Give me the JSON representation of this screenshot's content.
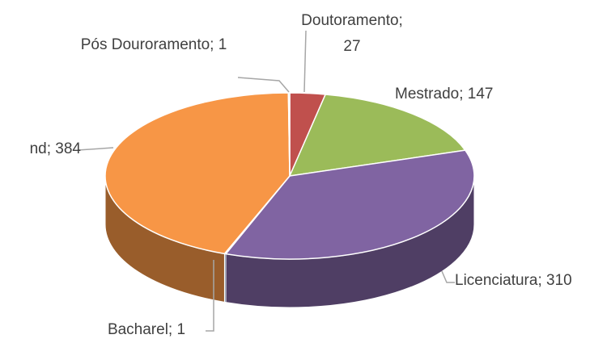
{
  "chart_data": {
    "type": "pie",
    "values": [
      27,
      147,
      310,
      1,
      384,
      1
    ],
    "value_labels": [
      "Doutoramento; 27",
      "Mestrado; 147",
      "Licenciatura; 310",
      "Bacharel; 1",
      "nd; 384",
      "Pós Douroramento; 1"
    ],
    "colors": [
      "#c0504d",
      "#9bbb59",
      "#8064a2",
      "#4f81bd",
      "#f79646",
      "#4bacc6"
    ],
    "three_d": true
  }
}
